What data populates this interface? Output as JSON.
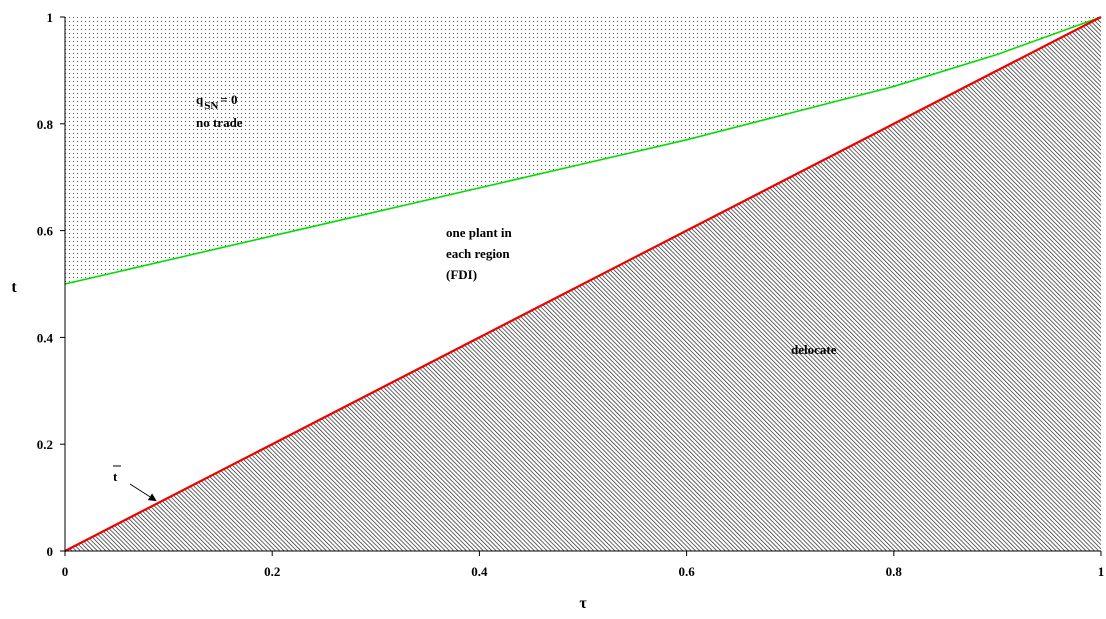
{
  "chart_data": {
    "type": "area",
    "title": "",
    "xlabel": "τ",
    "ylabel": "t",
    "xlim": [
      0,
      1
    ],
    "ylim": [
      0,
      1
    ],
    "x_ticks": [
      "0",
      "0.2",
      "0.4",
      "0.6",
      "0.8",
      "1"
    ],
    "y_ticks": [
      "0",
      "0.2",
      "0.4",
      "0.6",
      "0.8",
      "1"
    ],
    "grid": false,
    "series": [
      {
        "color": "#00dd00",
        "x": [
          0,
          0.1,
          0.2,
          0.3,
          0.4,
          0.5,
          0.6,
          0.7,
          0.8,
          0.9,
          1.0
        ],
        "y": [
          0.5,
          0.545,
          0.59,
          0.635,
          0.68,
          0.725,
          0.77,
          0.82,
          0.87,
          0.93,
          1.0
        ]
      },
      {
        "color": "#ee0000",
        "x": [
          0,
          1
        ],
        "y": [
          0,
          1
        ]
      }
    ],
    "regions": {
      "no_trade": {
        "label_main": "q",
        "label_sub": "SN",
        "label_eq": "= 0",
        "label_line2": "no trade",
        "pattern": "dots"
      },
      "fdi": {
        "lines": [
          "one plant in",
          "each region",
          "(FDI)"
        ]
      },
      "delocate": {
        "label": "delocate",
        "pattern": "diagonal-hatch"
      }
    },
    "annotations": {
      "t_bar": "t"
    }
  }
}
